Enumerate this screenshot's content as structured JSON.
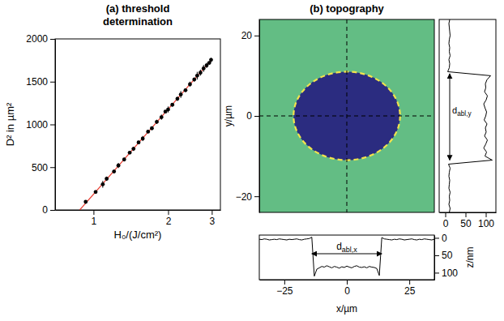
{
  "chart_data": [
    {
      "type": "scatter",
      "title": "(a) threshold determination",
      "x_label": "H₀/(J/cm²)",
      "y_label": "D² in µm²",
      "log": "x",
      "xlim": [
        0.7,
        3.25
      ],
      "xticks": [
        1,
        2,
        3
      ],
      "ylim": [
        0,
        2000
      ],
      "yticks": [
        0,
        500,
        1000,
        1500,
        2000
      ],
      "x": [
        0.93,
        1.02,
        1.09,
        1.13,
        1.21,
        1.26,
        1.33,
        1.4,
        1.45,
        1.52,
        1.58,
        1.66,
        1.72,
        1.8,
        1.88,
        1.95,
        2.0,
        2.08,
        2.18,
        2.25,
        2.35,
        2.45,
        2.55,
        2.62,
        2.7,
        2.78,
        2.86,
        2.93,
        2.98
      ],
      "values": [
        95,
        210,
        300,
        365,
        450,
        520,
        590,
        670,
        715,
        790,
        835,
        915,
        955,
        1030,
        1085,
        1150,
        1175,
        1230,
        1300,
        1350,
        1400,
        1470,
        1525,
        1570,
        1605,
        1655,
        1690,
        1720,
        1755
      ],
      "errors": [
        15,
        20,
        40,
        25,
        20,
        30,
        20,
        15,
        25,
        20,
        30,
        15,
        20,
        25,
        30,
        15,
        35,
        20,
        25,
        40,
        20,
        30,
        25,
        45,
        35,
        40,
        30,
        20,
        25
      ],
      "color": "#000000",
      "marker": "circle",
      "fit": {
        "x": [
          0.88,
          3.0
        ],
        "values": [
          0,
          1760
        ],
        "color": "#e8392c"
      }
    },
    {
      "type": "image",
      "title": "(b) topography",
      "y_label": "y/µm",
      "xlim": [
        -23,
        23
      ],
      "ylim": [
        -24,
        24
      ],
      "yticks": [
        {
          "value": -20,
          "label": "−20"
        },
        0,
        20
      ],
      "tick_labels": "y",
      "crater": {
        "x_center": 0,
        "y_center": 0,
        "x_radius": 14,
        "y_radius": 11
      },
      "colors": [
        "#63bd84",
        "#2b2c80",
        "#f2e34c"
      ]
    },
    {
      "type": "line",
      "x_label": "x/µm",
      "y_label": "z/nm",
      "x": [
        -35,
        -34,
        -33,
        -32,
        -31,
        -30,
        -29,
        -28,
        -27,
        -26,
        -25,
        -24,
        -23,
        -22,
        -21,
        -20,
        -19,
        -18,
        -17,
        -16,
        -15,
        -14,
        -13,
        -12,
        -11,
        -10,
        -9,
        -8,
        -7,
        -6,
        -5,
        -4,
        -3,
        -2,
        -1,
        0,
        1,
        2,
        3,
        4,
        5,
        6,
        7,
        8,
        9,
        10,
        11,
        12,
        13,
        14,
        15,
        16,
        17,
        18,
        19,
        20,
        21,
        22,
        23,
        24,
        25,
        26,
        27,
        28,
        29,
        30,
        31,
        32,
        33,
        34,
        35
      ],
      "values": [
        4,
        5,
        3,
        4,
        6,
        5,
        4,
        5,
        3,
        4,
        5,
        6,
        4,
        5,
        4,
        3,
        5,
        6,
        4,
        3,
        2,
        -2,
        110,
        90,
        86,
        82,
        84,
        80,
        83,
        86,
        82,
        84,
        87,
        83,
        85,
        81,
        84,
        86,
        82,
        80,
        84,
        85,
        83,
        86,
        82,
        84,
        85,
        88,
        108,
        -1,
        3,
        4,
        5,
        6,
        4,
        5,
        3,
        4,
        6,
        5,
        4,
        3,
        5,
        6,
        4,
        5,
        3,
        4,
        5,
        6,
        4
      ],
      "xlim": [
        -35,
        35
      ],
      "xticks": [
        {
          "value": -25,
          "label": "−25"
        },
        0,
        25
      ],
      "ylim": [
        120,
        -8
      ],
      "yticks": [
        0,
        50,
        100
      ],
      "color": "#000000",
      "annotation": {
        "text": "d",
        "subscript": "abl,x",
        "from": -14,
        "to": 14
      }
    },
    {
      "type": "line",
      "orientation": "horizontal",
      "y": [
        -24,
        -23,
        -22,
        -21,
        -20,
        -19,
        -18,
        -17,
        -16,
        -15,
        -14,
        -13,
        -12,
        -11,
        -10,
        -9,
        -8,
        -7,
        -6,
        -5,
        -4,
        -3,
        -2,
        -1,
        0,
        1,
        2,
        3,
        4,
        5,
        6,
        7,
        8,
        9,
        10,
        11,
        12,
        13,
        14,
        15,
        16,
        17,
        18,
        19,
        20,
        21,
        22,
        23,
        24
      ],
      "values": [
        10,
        12,
        9,
        11,
        10,
        12,
        9,
        10,
        11,
        9,
        10,
        12,
        8,
        116,
        98,
        102,
        95,
        100,
        104,
        97,
        101,
        99,
        103,
        96,
        100,
        102,
        98,
        95,
        101,
        104,
        97,
        100,
        99,
        103,
        112,
        6,
        10,
        11,
        9,
        12,
        10,
        11,
        9,
        10,
        12,
        11,
        10,
        9,
        11
      ],
      "xlim": [
        -15,
        125
      ],
      "xticks": [
        0,
        50,
        100
      ],
      "ylim": [
        -24,
        24
      ],
      "tick_labels": "x",
      "color": "#000000",
      "annotation": {
        "text": "d",
        "subscript": "abl,y",
        "from": -11,
        "to": 10.5
      }
    }
  ]
}
